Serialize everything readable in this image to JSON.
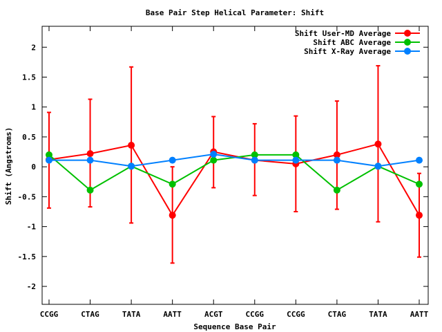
{
  "chart_data": {
    "type": "line",
    "title": "Base Pair Step Helical Parameter: Shift",
    "xlabel": "Sequence Base Pair",
    "ylabel": "Shift (Angstroms)",
    "categories": [
      "CCGG",
      "CTAG",
      "TATA",
      "AATT",
      "ACGT",
      "CCGG",
      "CCGG",
      "CTAG",
      "TATA",
      "AATT"
    ],
    "ylim": [
      -2.3,
      2.35
    ],
    "yticks": [
      -2,
      -1.5,
      -1,
      -0.5,
      0,
      0.5,
      1,
      1.5,
      2
    ],
    "ytick_labels": [
      "-2",
      "-1.5",
      "-1",
      "-0.5",
      "0",
      "0.5",
      "1",
      "1.5",
      "2"
    ],
    "grid": false,
    "legend_position": "top-right",
    "series": [
      {
        "name": "Shift User-MD Average",
        "color": "#ff0000",
        "values": [
          0.12,
          0.22,
          0.36,
          -0.81,
          0.25,
          0.11,
          0.05,
          0.2,
          0.38,
          -0.81
        ],
        "error_low": [
          -0.69,
          -0.67,
          -0.94,
          -1.61,
          -0.35,
          -0.48,
          -0.75,
          -0.71,
          -0.92,
          -1.51
        ],
        "error_high": [
          0.91,
          1.13,
          1.67,
          0.0,
          0.84,
          0.72,
          0.85,
          1.1,
          1.69,
          -0.11
        ]
      },
      {
        "name": "Shift ABC Average",
        "color": "#00c000",
        "values": [
          0.2,
          -0.39,
          0.01,
          -0.29,
          0.11,
          0.2,
          0.2,
          -0.39,
          0.01,
          -0.29
        ]
      },
      {
        "name": "Shift X-Ray Average",
        "color": "#0080ff",
        "values": [
          0.11,
          0.11,
          0.01,
          0.11,
          0.21,
          0.11,
          0.11,
          0.11,
          0.01,
          0.11
        ]
      }
    ]
  }
}
